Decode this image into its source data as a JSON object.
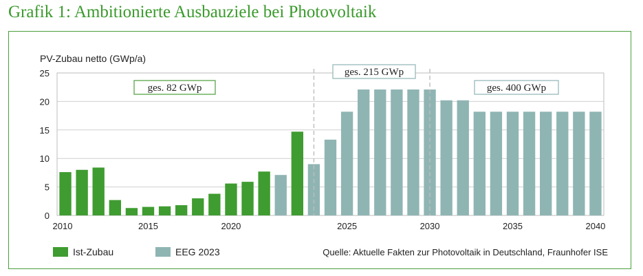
{
  "headline": "Grafik 1: Ambitionierte Ausbauziele bei Photovoltaik",
  "chart_data": {
    "type": "bar",
    "ylabel": "PV-Zubau netto (GWp/a)",
    "ylim": [
      0,
      25
    ],
    "yticks": [
      0,
      5,
      10,
      15,
      20,
      25
    ],
    "xlim": [
      2010,
      2040
    ],
    "xticks": [
      2010,
      2015,
      2020,
      2025,
      2030,
      2035,
      2040
    ],
    "grid": "horizontal",
    "colors": {
      "ist": "#3f9c30",
      "eeg": "#8fb5b3"
    },
    "series": [
      {
        "name": "Ist-Zubau",
        "color": "#3f9c30",
        "points": [
          {
            "x": 2010,
            "y": 7.6
          },
          {
            "x": 2011,
            "y": 8.0
          },
          {
            "x": 2012,
            "y": 8.4
          },
          {
            "x": 2013,
            "y": 2.7
          },
          {
            "x": 2014,
            "y": 1.3
          },
          {
            "x": 2015,
            "y": 1.5
          },
          {
            "x": 2016,
            "y": 1.6
          },
          {
            "x": 2017,
            "y": 1.8
          },
          {
            "x": 2018,
            "y": 3.0
          },
          {
            "x": 2019,
            "y": 3.8
          },
          {
            "x": 2020,
            "y": 5.6
          },
          {
            "x": 2021,
            "y": 5.9
          },
          {
            "x": 2022,
            "y": 7.7
          },
          {
            "x": 2023,
            "y": 14.7
          }
        ]
      },
      {
        "name": "EEG 2023",
        "color": "#8fb5b3",
        "points": [
          {
            "x": 2022,
            "y": 7.1
          },
          {
            "x": 2023,
            "y": 9.0
          },
          {
            "x": 2024,
            "y": 13.3
          },
          {
            "x": 2025,
            "y": 18.2
          },
          {
            "x": 2026,
            "y": 22.1
          },
          {
            "x": 2027,
            "y": 22.1
          },
          {
            "x": 2028,
            "y": 22.1
          },
          {
            "x": 2029,
            "y": 22.1
          },
          {
            "x": 2030,
            "y": 22.1
          },
          {
            "x": 2031,
            "y": 20.2
          },
          {
            "x": 2032,
            "y": 20.2
          },
          {
            "x": 2033,
            "y": 18.2
          },
          {
            "x": 2034,
            "y": 18.2
          },
          {
            "x": 2035,
            "y": 18.2
          },
          {
            "x": 2036,
            "y": 18.2
          },
          {
            "x": 2037,
            "y": 18.2
          },
          {
            "x": 2038,
            "y": 18.2
          },
          {
            "x": 2039,
            "y": 18.2
          },
          {
            "x": 2040,
            "y": 18.2
          }
        ]
      }
    ],
    "annotations": [
      {
        "text": "ges. 82 GWp",
        "border": "#4a9e3a"
      },
      {
        "text": "ges. 215 GWp",
        "border": "#8fb5b3"
      },
      {
        "text": "ges. 400 GWp",
        "border": "#8fb5b3"
      }
    ],
    "dividers": [
      2023.9,
      2030.5
    ],
    "legend": [
      "Ist-Zubau",
      "EEG 2023"
    ],
    "source": "Quelle: Aktuelle Fakten zur Photovoltaik in Deutschland, Fraunhofer ISE"
  }
}
